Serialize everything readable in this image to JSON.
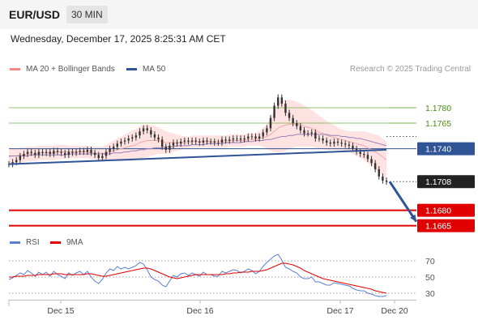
{
  "header": {
    "pair": "EUR/USD",
    "timeframe": "30 MIN",
    "datetime": "Wednesday, December 17, 2025 8:25:31 AM CET"
  },
  "legend": {
    "ma20": "MA 20 + Bollinger Bands",
    "ma50": "MA 50",
    "credit": "Research © 2025 Trading Central"
  },
  "rsi_legend": {
    "rsi": "RSI",
    "ma9": "9MA"
  },
  "colors": {
    "price": "#333333",
    "bollinger": "#ffd9d9",
    "ma20": "#f0a8a8",
    "ma50": "#9a80b8",
    "trendline": "#2f5597",
    "resistance_green": "#70b040",
    "support_red": "#e00000",
    "current_tag": "#222222",
    "rsi": "#5b7fd4",
    "rsi_ma": "#e00000"
  },
  "chart_data": [
    {
      "type": "line",
      "name": "price-panel",
      "x": [
        "Dec 15",
        "Dec 16",
        "Dec 17",
        "Dec 20"
      ],
      "levels": [
        {
          "value": 1.178,
          "label": "1.1780",
          "kind": "resistance"
        },
        {
          "value": 1.1765,
          "label": "1.1765",
          "kind": "resistance"
        },
        {
          "value": 1.174,
          "label": "1.1740",
          "kind": "pivot"
        },
        {
          "value": 1.1708,
          "label": "1.1708",
          "kind": "current"
        },
        {
          "value": 1.168,
          "label": "1.1680",
          "kind": "support"
        },
        {
          "value": 1.1665,
          "label": "1.1665",
          "kind": "support"
        }
      ],
      "ylim": [
        1.166,
        1.181
      ],
      "price": [
        1.1725,
        1.1727,
        1.1729,
        1.1733,
        1.1735,
        1.1737,
        1.1736,
        1.1734,
        1.1737,
        1.1736,
        1.1737,
        1.1735,
        1.1738,
        1.1737,
        1.1736,
        1.1734,
        1.1737,
        1.1736,
        1.1737,
        1.1738,
        1.1737,
        1.1739,
        1.1736,
        1.1734,
        1.1731,
        1.1733,
        1.1737,
        1.174,
        1.1742,
        1.1745,
        1.1747,
        1.1748,
        1.175,
        1.1751,
        1.1753,
        1.1757,
        1.176,
        1.1758,
        1.1754,
        1.1751,
        1.1749,
        1.1742,
        1.1739,
        1.1743,
        1.1746,
        1.1745,
        1.1747,
        1.1748,
        1.1747,
        1.1748,
        1.1747,
        1.1746,
        1.1748,
        1.1747,
        1.1747,
        1.1746,
        1.1746,
        1.1749,
        1.1748,
        1.1749,
        1.175,
        1.175,
        1.1749,
        1.175,
        1.1752,
        1.1752,
        1.175,
        1.1752,
        1.1756,
        1.176,
        1.177,
        1.1782,
        1.179,
        1.1784,
        1.1775,
        1.177,
        1.1765,
        1.1762,
        1.1758,
        1.1755,
        1.1755,
        1.1756,
        1.175,
        1.175,
        1.1748,
        1.1746,
        1.1745,
        1.1747,
        1.1746,
        1.1745,
        1.1744,
        1.1743,
        1.174,
        1.1737,
        1.1735,
        1.1734,
        1.173,
        1.1726,
        1.172,
        1.1713,
        1.1709,
        1.1708
      ],
      "ma20": [
        1.1732,
        1.1733,
        1.1733,
        1.1734,
        1.1734,
        1.1735,
        1.1735,
        1.1735,
        1.1736,
        1.1736,
        1.1736,
        1.1736,
        1.1736,
        1.1737,
        1.1737,
        1.1737,
        1.1737,
        1.1737,
        1.1737,
        1.1737,
        1.1737,
        1.1737,
        1.1736,
        1.1736,
        1.1735,
        1.1735,
        1.1736,
        1.1737,
        1.1738,
        1.1739,
        1.174,
        1.1741,
        1.1742,
        1.1743,
        1.1744,
        1.1746,
        1.1747,
        1.1748,
        1.1748,
        1.1748,
        1.1748,
        1.1747,
        1.1746,
        1.1746,
        1.1746,
        1.1746,
        1.1746,
        1.1746,
        1.1746,
        1.1747,
        1.1747,
        1.1747,
        1.1747,
        1.1747,
        1.1747,
        1.1747,
        1.1747,
        1.1747,
        1.1747,
        1.1748,
        1.1748,
        1.1748,
        1.1748,
        1.1748,
        1.1749,
        1.1749,
        1.1749,
        1.175,
        1.1751,
        1.1752,
        1.1754,
        1.1757,
        1.176,
        1.1762,
        1.1763,
        1.1764,
        1.1764,
        1.1764,
        1.1763,
        1.1762,
        1.1761,
        1.176,
        1.1758,
        1.1756,
        1.1755,
        1.1753,
        1.1752,
        1.1751,
        1.175,
        1.1749,
        1.1748,
        1.1747,
        1.1746,
        1.1745,
        1.1744,
        1.1743,
        1.1741,
        1.1739,
        1.1737,
        1.1735,
        1.1732,
        1.1729
      ],
      "ma50": [
        1.1733,
        1.1733,
        1.1733,
        1.1733,
        1.1733,
        1.1733,
        1.1734,
        1.1734,
        1.1734,
        1.1734,
        1.1734,
        1.1734,
        1.1734,
        1.1734,
        1.1734,
        1.1734,
        1.1735,
        1.1735,
        1.1735,
        1.1735,
        1.1735,
        1.1735,
        1.1735,
        1.1735,
        1.1735,
        1.1735,
        1.1735,
        1.1735,
        1.1736,
        1.1736,
        1.1736,
        1.1737,
        1.1737,
        1.1738,
        1.1738,
        1.1739,
        1.1739,
        1.174,
        1.174,
        1.1741,
        1.1741,
        1.1741,
        1.1742,
        1.1742,
        1.1742,
        1.1743,
        1.1743,
        1.1743,
        1.1743,
        1.1744,
        1.1744,
        1.1744,
        1.1744,
        1.1745,
        1.1745,
        1.1745,
        1.1745,
        1.1745,
        1.1746,
        1.1746,
        1.1746,
        1.1746,
        1.1746,
        1.1747,
        1.1747,
        1.1747,
        1.1748,
        1.1748,
        1.1748,
        1.1749,
        1.1749,
        1.175,
        1.1751,
        1.1752,
        1.1752,
        1.1753,
        1.1753,
        1.1754,
        1.1754,
        1.1754,
        1.1754,
        1.1754,
        1.1754,
        1.1754,
        1.1754,
        1.1754,
        1.1753,
        1.1753,
        1.1753,
        1.1752,
        1.1752,
        1.1751,
        1.1751,
        1.175,
        1.175,
        1.1749,
        1.1748,
        1.1747,
        1.1746,
        1.1745,
        1.1744,
        1.1743
      ],
      "bb_width": [
        0.0007,
        0.0007,
        0.0007,
        0.0007,
        0.0007,
        0.0007,
        0.0007,
        0.0007,
        0.0007,
        0.0007,
        0.0007,
        0.0007,
        0.0007,
        0.0007,
        0.0007,
        0.0007,
        0.0006,
        0.0006,
        0.0006,
        0.0006,
        0.0006,
        0.0006,
        0.0006,
        0.0006,
        0.0007,
        0.0007,
        0.0008,
        0.0009,
        0.001,
        0.0011,
        0.0012,
        0.0013,
        0.0014,
        0.0015,
        0.0015,
        0.0016,
        0.0016,
        0.0016,
        0.0015,
        0.0014,
        0.0013,
        0.0012,
        0.0011,
        0.001,
        0.0009,
        0.0008,
        0.0007,
        0.0006,
        0.0006,
        0.0006,
        0.0006,
        0.0006,
        0.0006,
        0.0006,
        0.0006,
        0.0006,
        0.0006,
        0.0006,
        0.0006,
        0.0006,
        0.0006,
        0.0006,
        0.0006,
        0.0006,
        0.0006,
        0.0006,
        0.0006,
        0.0007,
        0.0009,
        0.0012,
        0.0016,
        0.002,
        0.0024,
        0.0025,
        0.0025,
        0.0024,
        0.0023,
        0.0022,
        0.0021,
        0.002,
        0.0019,
        0.0018,
        0.0017,
        0.0016,
        0.0015,
        0.0014,
        0.0013,
        0.0012,
        0.0011,
        0.001,
        0.001,
        0.001,
        0.0011,
        0.0012,
        0.0013,
        0.0014,
        0.0015,
        0.0016,
        0.0017,
        0.0018,
        0.0018,
        0.0018
      ],
      "trendline": [
        [
          0,
          1.1725
        ],
        [
          101,
          1.1739
        ]
      ],
      "projection": [
        [
          101,
          1.1708
        ],
        [
          109,
          1.1669
        ]
      ]
    },
    {
      "type": "line",
      "name": "rsi-panel",
      "ylim": [
        20,
        80
      ],
      "ticks": [
        70,
        50,
        30
      ],
      "rsi": [
        47,
        49,
        52,
        55,
        53,
        58,
        55,
        51,
        56,
        53,
        56,
        51,
        57,
        53,
        51,
        48,
        55,
        52,
        55,
        57,
        53,
        57,
        50,
        45,
        42,
        47,
        55,
        60,
        58,
        63,
        60,
        62,
        60,
        62,
        64,
        68,
        66,
        59,
        50,
        47,
        45,
        40,
        38,
        45,
        52,
        50,
        54,
        55,
        52,
        55,
        53,
        51,
        56,
        53,
        53,
        51,
        51,
        57,
        55,
        57,
        59,
        58,
        55,
        57,
        60,
        58,
        54,
        57,
        63,
        68,
        72,
        76,
        78,
        71,
        62,
        60,
        57,
        55,
        50,
        48,
        48,
        50,
        44,
        44,
        42,
        40,
        40,
        43,
        42,
        41,
        40,
        39,
        36,
        34,
        33,
        33,
        30,
        29,
        27,
        26,
        26,
        27
      ],
      "rsi_ma": [
        50,
        50,
        51,
        51,
        51,
        52,
        52,
        52,
        53,
        53,
        53,
        53,
        54,
        54,
        54,
        53,
        53,
        53,
        53,
        53,
        53,
        54,
        54,
        53,
        52,
        51,
        51,
        52,
        53,
        54,
        55,
        56,
        57,
        58,
        59,
        60,
        61,
        61,
        60,
        58,
        56,
        54,
        52,
        50,
        49,
        48,
        49,
        50,
        51,
        52,
        53,
        53,
        53,
        53,
        53,
        53,
        53,
        53,
        54,
        54,
        55,
        55,
        56,
        56,
        56,
        57,
        57,
        57,
        58,
        59,
        61,
        63,
        65,
        67,
        67,
        66,
        65,
        63,
        61,
        58,
        56,
        54,
        52,
        50,
        48,
        47,
        46,
        45,
        44,
        43,
        42,
        41,
        40,
        39,
        38,
        37,
        36,
        35,
        33,
        32,
        31,
        30
      ]
    }
  ],
  "axes": {
    "x_ticks": [
      "Dec 15",
      "Dec 16",
      "Dec 17",
      "Dec 20"
    ],
    "rsi_ticks": [
      "70",
      "50",
      "30"
    ]
  }
}
